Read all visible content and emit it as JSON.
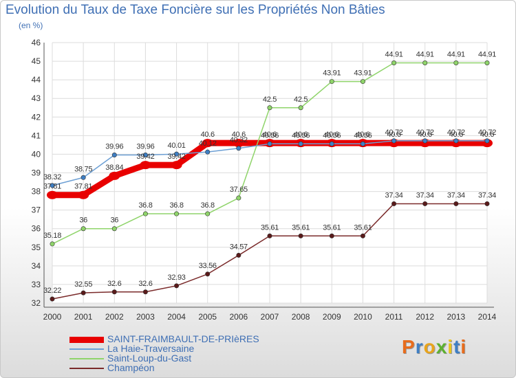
{
  "title": "Evolution du Taux de Taxe Foncière sur les Propriétés Non Bâties",
  "unit": "(en %)",
  "logo_text": "Proxiti",
  "logo_colors": [
    "#e86c1c",
    "#3f7fc4",
    "#e8a41c",
    "#5db12f",
    "#e8c41c",
    "#3f7fc4",
    "#e86c1c"
  ],
  "chart_data": {
    "type": "line",
    "title": "Evolution du Taux de Taxe Foncière sur les Propriétés Non Bâties",
    "ylabel": "(en %)",
    "xlabel": "",
    "ylim": [
      32,
      46
    ],
    "yticks": [
      "32",
      "33",
      "34",
      "35",
      "36",
      "37",
      "38",
      "39",
      "40",
      "41",
      "42",
      "43",
      "44",
      "45",
      "46"
    ],
    "categories": [
      "2000",
      "2001",
      "2002",
      "2003",
      "2004",
      "2005",
      "2006",
      "2007",
      "2008",
      "2009",
      "2010",
      "2011",
      "2012",
      "2013",
      "2014"
    ],
    "grid": true,
    "series": [
      {
        "name": "SAINT-FRAIMBAULT-DE-PRIèRES",
        "color": "#e80000",
        "marker": "#e80000",
        "style": "thick",
        "values": [
          37.81,
          37.81,
          38.84,
          39.42,
          39.42,
          40.6,
          40.6,
          40.6,
          40.6,
          40.6,
          40.6,
          40.6,
          40.6,
          40.6,
          40.6
        ],
        "labels": [
          "37.81",
          "37.81",
          "38.84",
          "39.42",
          "39.42",
          "40.6",
          "40.6",
          "40.6",
          "40.6",
          "40.6",
          "40.6",
          "40.6",
          "40.6",
          "40.6",
          "40.6"
        ]
      },
      {
        "name": "La Haie-Traversaine",
        "color": "#6c9fd4",
        "marker": "#3f7fc4",
        "style": "thin",
        "values": [
          38.32,
          38.75,
          39.96,
          39.96,
          40.01,
          40.12,
          40.32,
          40.56,
          40.56,
          40.56,
          40.56,
          40.72,
          40.72,
          40.72,
          40.72
        ],
        "labels": [
          "38.32",
          "38.75",
          "39.96",
          "39.96",
          "40.01",
          "40.12",
          "40.32",
          "40.56",
          "40.56",
          "40.56",
          "40.56",
          "40.72",
          "40.72",
          "40.72",
          "40.72"
        ]
      },
      {
        "name": "Saint-Loup-du-Gast",
        "color": "#8fd46a",
        "marker": "#8fd46a",
        "style": "thin",
        "values": [
          35.18,
          36,
          36,
          36.8,
          36.8,
          36.8,
          37.65,
          42.5,
          42.5,
          43.91,
          43.91,
          44.91,
          44.91,
          44.91,
          44.91
        ],
        "labels": [
          "35.18",
          "36",
          "36",
          "36.8",
          "36.8",
          "36.8",
          "37.65",
          "42.5",
          "42.5",
          "43.91",
          "43.91",
          "44.91",
          "44.91",
          "44.91",
          "44.91"
        ]
      },
      {
        "name": "Champéon",
        "color": "#7a2a2a",
        "marker": "#5a1a1a",
        "style": "thin",
        "values": [
          32.22,
          32.55,
          32.6,
          32.6,
          32.93,
          33.56,
          34.57,
          35.61,
          35.61,
          35.61,
          35.61,
          37.34,
          37.34,
          37.34,
          37.34
        ],
        "labels": [
          "32.22",
          "32.55",
          "32.6",
          "32.6",
          "32.93",
          "33.56",
          "34.57",
          "35.61",
          "35.61",
          "35.61",
          "35.61",
          "37.34",
          "37.34",
          "37.34",
          "37.34"
        ]
      }
    ],
    "legend_position": "bottom-left"
  }
}
